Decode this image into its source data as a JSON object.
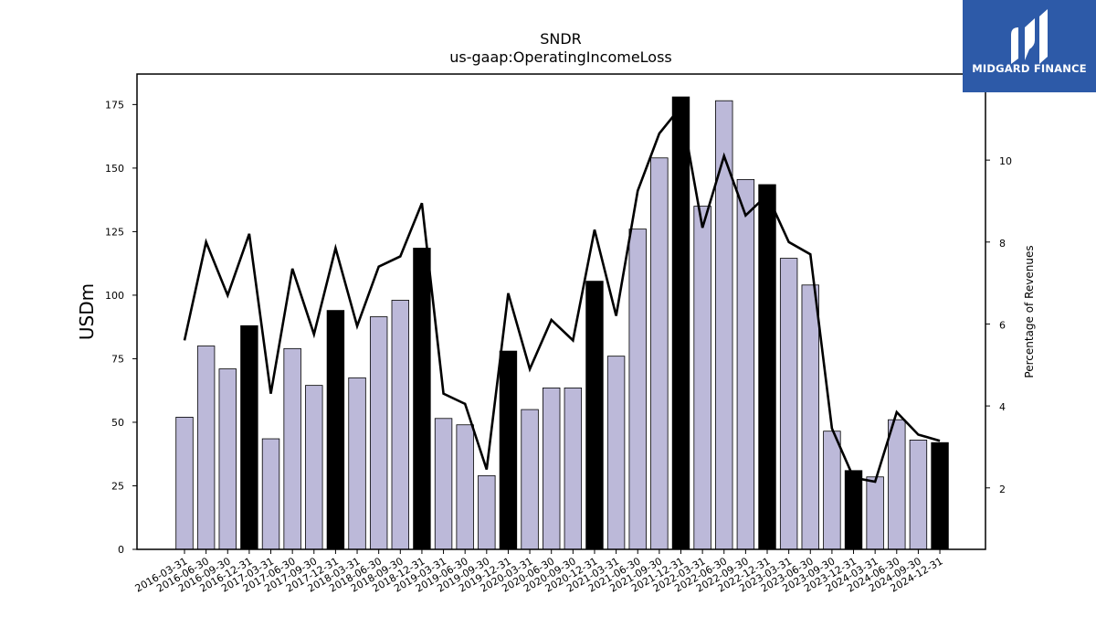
{
  "chart_data": {
    "type": "bar",
    "title": "SNDR",
    "subtitle": "us-gaap:OperatingIncomeLoss",
    "ylabel": "USDm",
    "y2label": "Percentage of Revenues",
    "ylim": [
      0,
      187
    ],
    "y2lim": [
      0.5,
      12.1
    ],
    "yticks": [
      0,
      25,
      50,
      75,
      100,
      125,
      150,
      175
    ],
    "y2ticks": [
      2,
      4,
      6,
      8,
      10
    ],
    "categories": [
      "2016-03-31",
      "2016-06-30",
      "2016-09-30",
      "2016-12-31",
      "2017-03-31",
      "2017-06-30",
      "2017-09-30",
      "2017-12-31",
      "2018-03-31",
      "2018-06-30",
      "2018-09-30",
      "2018-12-31",
      "2019-03-31",
      "2019-06-30",
      "2019-09-30",
      "2019-12-31",
      "2020-03-31",
      "2020-06-30",
      "2020-09-30",
      "2020-12-31",
      "2021-03-31",
      "2021-06-30",
      "2021-09-30",
      "2021-12-31",
      "2022-03-31",
      "2022-06-30",
      "2022-09-30",
      "2022-12-31",
      "2023-03-31",
      "2023-06-30",
      "2023-09-30",
      "2023-12-31",
      "2024-03-31",
      "2024-06-30",
      "2024-09-30",
      "2024-12-31"
    ],
    "series": [
      {
        "type": "bar",
        "values": [
          52,
          80,
          71,
          88,
          43.5,
          79,
          64.5,
          94,
          67.5,
          91.5,
          98,
          118.5,
          51.5,
          49,
          29,
          78,
          55,
          63.5,
          63.5,
          105.5,
          76,
          126,
          154,
          178,
          135,
          176.5,
          145.5,
          143.5,
          114.5,
          104,
          46.5,
          31,
          28.5,
          51,
          43,
          42
        ]
      },
      {
        "type": "line",
        "axis": "right",
        "values": [
          5.6,
          8.0,
          6.7,
          8.2,
          4.3,
          7.35,
          5.75,
          7.85,
          5.95,
          7.4,
          7.65,
          8.95,
          4.3,
          4.05,
          2.45,
          6.75,
          4.9,
          6.1,
          5.6,
          8.3,
          6.2,
          9.25,
          10.65,
          11.3,
          8.35,
          10.1,
          8.65,
          9.15,
          8.0,
          7.7,
          3.45,
          2.25,
          2.15,
          3.85,
          3.3,
          3.15
        ]
      }
    ],
    "bar_fill": "#bcb9d9",
    "bar_fill_year_end": "#000000",
    "bar_edge": "#000000",
    "line_color": "#000000"
  },
  "logo": {
    "text": "MIDGARD FINANCE",
    "background": "#2d5aa8"
  }
}
